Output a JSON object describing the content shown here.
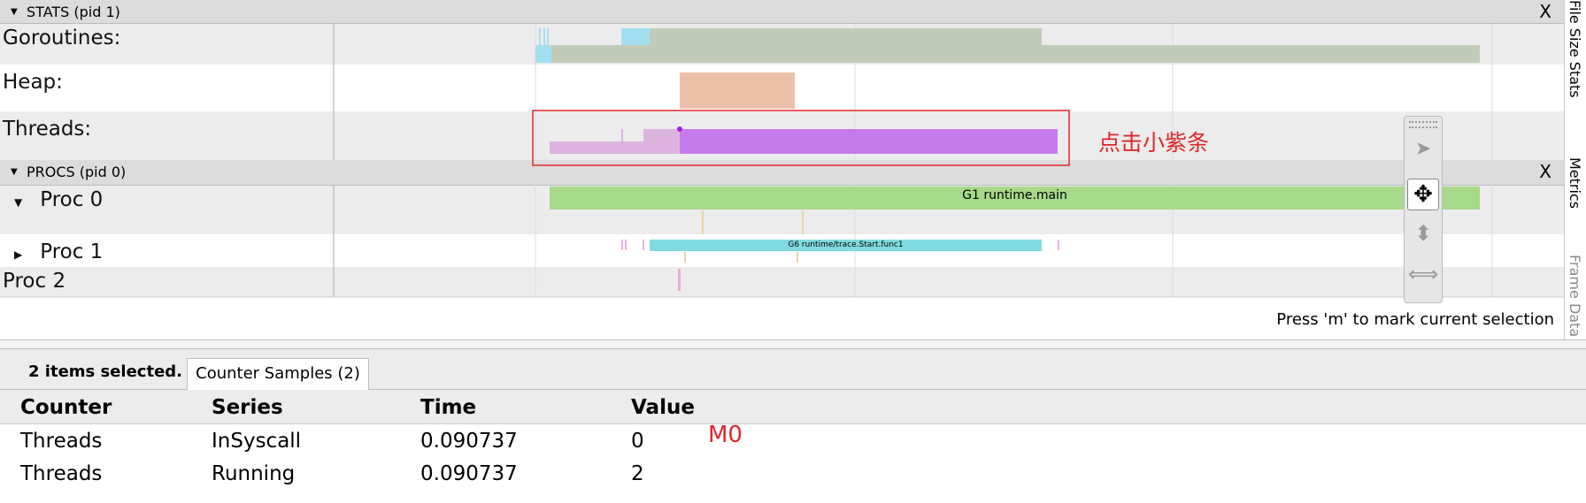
{
  "stats_section": {
    "title": "STATS (pid 1)",
    "close": "X",
    "rows": [
      "Goroutines:",
      "Heap:",
      "Threads:"
    ]
  },
  "procs_section": {
    "title": "PROCS (pid 0)",
    "close": "X",
    "rows": [
      "Proc 0",
      "Proc 1",
      "Proc 2"
    ]
  },
  "slices": [
    "G1 runtime.main",
    "G6 runtime/trace.Start.func1"
  ],
  "annotation": "点击小紫条",
  "hint": "Press 'm' to mark current selection",
  "side_tabs": [
    "File Size Stats",
    "Metrics",
    "Frame Data"
  ],
  "panel": {
    "selection": "2 items selected.",
    "tab": "Counter Samples (2)",
    "table": {
      "header": [
        "Counter",
        "Series",
        "Time",
        "Value"
      ],
      "rows": [
        [
          "Threads",
          "InSyscall",
          "0.090737",
          "0"
        ],
        [
          "Threads",
          "Running",
          "0.090737",
          "2"
        ]
      ]
    }
  },
  "annotation2": "M0"
}
